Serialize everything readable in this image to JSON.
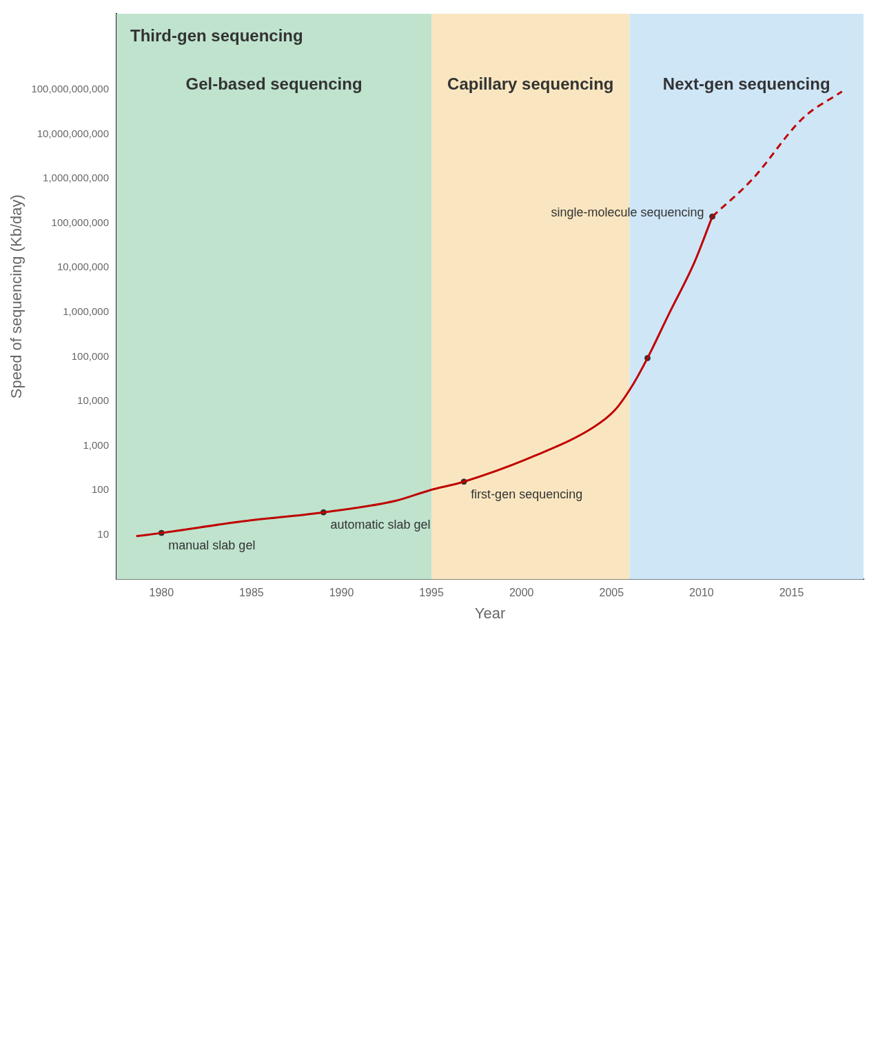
{
  "chart_data": {
    "type": "line",
    "xlabel": "Year",
    "ylabel": "Speed of sequencing (Kb/day)",
    "log": "y",
    "grid": false,
    "legend": false,
    "xlim": [
      1977.5,
      2019
    ],
    "xticks": [
      1980,
      1985,
      1990,
      1995,
      2000,
      2005,
      2010,
      2015
    ],
    "ylim": [
      1,
      5000000000000.0
    ],
    "yticks": [
      {
        "value": 10,
        "label": "10"
      },
      {
        "value": 100,
        "label": "100"
      },
      {
        "value": 1000,
        "label": "1,000"
      },
      {
        "value": 10000,
        "label": "10,000"
      },
      {
        "value": 100000,
        "label": "100,000"
      },
      {
        "value": 1000000,
        "label": "1,000,000"
      },
      {
        "value": 10000000,
        "label": "10,000,000"
      },
      {
        "value": 100000000,
        "label": "100,000,000"
      },
      {
        "value": 1000000000,
        "label": "1,000,000,000"
      },
      {
        "value": 10000000000,
        "label": "10,000,000,000"
      },
      {
        "value": 100000000000,
        "label": "100,000,000,000"
      }
    ],
    "bands": [
      {
        "axis": "x",
        "from": 1977.5,
        "to": 1995,
        "label": "Gel-based sequencing",
        "color": "#bfe3cd"
      },
      {
        "axis": "x",
        "from": 1995,
        "to": 2006,
        "label": "Capillary sequencing",
        "color": "#f9e6c0"
      },
      {
        "axis": "x",
        "from": 2006,
        "to": 2019,
        "label": "Next-gen sequencing",
        "color": "#cfe6f7"
      }
    ],
    "series": [
      {
        "color": "#c00000",
        "line_style": "solid",
        "marker": "none",
        "x": [
          1978.6,
          1980,
          1984.5,
          1989,
          1993,
          1994.9,
          1996.8,
          2000.8,
          2004,
          2005.2,
          2006.2,
          2007,
          2008.2,
          2009.6,
          2010.6
        ],
        "values": [
          9.3,
          11,
          20,
          32,
          58,
          100,
          156,
          610,
          2600,
          6400,
          24000,
          93000,
          930000,
          13000000,
          140000000
        ]
      },
      {
        "color": "#c00000",
        "line_style": "dashed",
        "marker": "none",
        "x": [
          2010.6,
          2012.8,
          2015.6,
          2017.8
        ],
        "values": [
          140000000,
          940000000,
          22000000000,
          90000000000
        ]
      },
      {
        "type": "scatter",
        "color": "#333333",
        "marker": "circle",
        "x": [
          1980,
          1989,
          1996.8,
          2007,
          2010.6
        ],
        "values": [
          11,
          32,
          156,
          93000,
          140000000
        ]
      }
    ],
    "annotations": [
      "Third-gen sequencing",
      {
        "text": "manual slab gel",
        "x": 1980,
        "y": 11
      },
      {
        "text": "automatic slab gel",
        "x": 1989,
        "y": 32
      },
      {
        "text": "first-gen sequencing",
        "x": 1996.8,
        "y": 156
      },
      {
        "text": "single-molecule sequencing",
        "x": 2010.6,
        "y": 140000000
      }
    ]
  }
}
